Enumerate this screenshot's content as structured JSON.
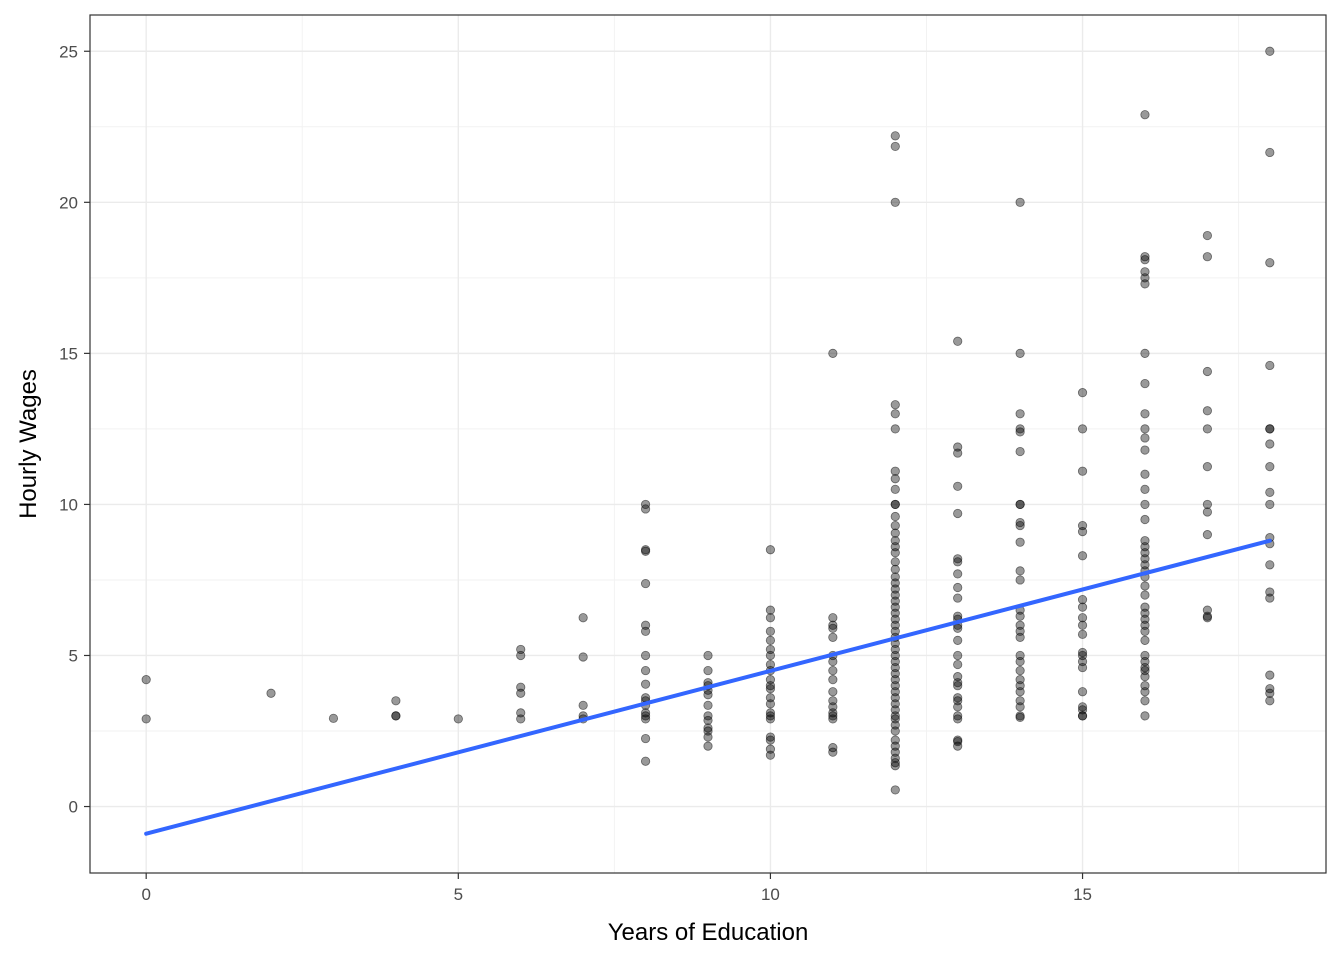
{
  "chart_data": {
    "type": "scatter",
    "title": "",
    "xlabel": "Years of Education",
    "ylabel": "Hourly Wages",
    "xlim": [
      -0.9,
      18.9
    ],
    "ylim": [
      -2.2,
      26.2
    ],
    "x_ticks": [
      0,
      5,
      10,
      15
    ],
    "y_ticks": [
      0,
      5,
      10,
      15,
      20,
      25
    ],
    "x_tick_labels": [
      "0",
      "5",
      "10",
      "15"
    ],
    "y_tick_labels": [
      "0",
      "5",
      "10",
      "15",
      "20",
      "25"
    ],
    "grid": true,
    "theme": "bw",
    "point_color": "#000000",
    "point_opacity": 0.4,
    "line_color": "#3366ff",
    "regression_line": {
      "x": [
        0,
        18
      ],
      "y": [
        -0.9,
        8.8
      ]
    },
    "points": [
      [
        0,
        4.2
      ],
      [
        0,
        2.9
      ],
      [
        2,
        3.75
      ],
      [
        3,
        2.92
      ],
      [
        4,
        3.5
      ],
      [
        4,
        3.0
      ],
      [
        4,
        3.0
      ],
      [
        5,
        2.9
      ],
      [
        6,
        5.2
      ],
      [
        6,
        5.0
      ],
      [
        6,
        3.95
      ],
      [
        6,
        3.75
      ],
      [
        6,
        3.1
      ],
      [
        6,
        2.9
      ],
      [
        7,
        6.25
      ],
      [
        7,
        4.95
      ],
      [
        7,
        3.35
      ],
      [
        7,
        3.0
      ],
      [
        7,
        2.9
      ],
      [
        8,
        10.0
      ],
      [
        8,
        9.85
      ],
      [
        8,
        8.5
      ],
      [
        8,
        8.45
      ],
      [
        8,
        7.38
      ],
      [
        8,
        6.0
      ],
      [
        8,
        5.8
      ],
      [
        8,
        5.0
      ],
      [
        8,
        4.5
      ],
      [
        8,
        4.05
      ],
      [
        8,
        3.6
      ],
      [
        8,
        3.5
      ],
      [
        8,
        3.35
      ],
      [
        8,
        3.1
      ],
      [
        8,
        3.0
      ],
      [
        8,
        2.9
      ],
      [
        8,
        2.25
      ],
      [
        8,
        1.5
      ],
      [
        9,
        5.0
      ],
      [
        9,
        4.5
      ],
      [
        9,
        4.1
      ],
      [
        9,
        4.0
      ],
      [
        9,
        3.85
      ],
      [
        9,
        3.7
      ],
      [
        9,
        3.35
      ],
      [
        9,
        3.0
      ],
      [
        9,
        2.85
      ],
      [
        9,
        2.6
      ],
      [
        9,
        2.5
      ],
      [
        9,
        2.3
      ],
      [
        9,
        2.0
      ],
      [
        10,
        8.5
      ],
      [
        10,
        6.5
      ],
      [
        10,
        6.25
      ],
      [
        10,
        5.8
      ],
      [
        10,
        5.5
      ],
      [
        10,
        5.2
      ],
      [
        10,
        5.0
      ],
      [
        10,
        4.7
      ],
      [
        10,
        4.5
      ],
      [
        10,
        4.2
      ],
      [
        10,
        4.0
      ],
      [
        10,
        3.9
      ],
      [
        10,
        3.6
      ],
      [
        10,
        3.4
      ],
      [
        10,
        3.1
      ],
      [
        10,
        3.0
      ],
      [
        10,
        2.9
      ],
      [
        10,
        2.3
      ],
      [
        10,
        2.2
      ],
      [
        10,
        1.9
      ],
      [
        10,
        1.7
      ],
      [
        11,
        15.0
      ],
      [
        11,
        6.25
      ],
      [
        11,
        6.0
      ],
      [
        11,
        5.9
      ],
      [
        11,
        5.6
      ],
      [
        11,
        5.0
      ],
      [
        11,
        4.8
      ],
      [
        11,
        4.5
      ],
      [
        11,
        4.2
      ],
      [
        11,
        3.8
      ],
      [
        11,
        3.5
      ],
      [
        11,
        3.3
      ],
      [
        11,
        3.1
      ],
      [
        11,
        3.0
      ],
      [
        11,
        2.9
      ],
      [
        11,
        1.95
      ],
      [
        11,
        1.8
      ],
      [
        12,
        22.2
      ],
      [
        12,
        21.85
      ],
      [
        12,
        20.0
      ],
      [
        12,
        13.3
      ],
      [
        12,
        13.0
      ],
      [
        12,
        12.5
      ],
      [
        12,
        11.1
      ],
      [
        12,
        10.85
      ],
      [
        12,
        10.5
      ],
      [
        12,
        10.0
      ],
      [
        12,
        10.0
      ],
      [
        12,
        9.6
      ],
      [
        12,
        9.3
      ],
      [
        12,
        9.05
      ],
      [
        12,
        8.8
      ],
      [
        12,
        8.6
      ],
      [
        12,
        8.4
      ],
      [
        12,
        8.1
      ],
      [
        12,
        7.85
      ],
      [
        12,
        7.6
      ],
      [
        12,
        7.4
      ],
      [
        12,
        7.2
      ],
      [
        12,
        7.0
      ],
      [
        12,
        6.8
      ],
      [
        12,
        6.6
      ],
      [
        12,
        6.4
      ],
      [
        12,
        6.2
      ],
      [
        12,
        6.0
      ],
      [
        12,
        5.8
      ],
      [
        12,
        5.6
      ],
      [
        12,
        5.4
      ],
      [
        12,
        5.2
      ],
      [
        12,
        5.0
      ],
      [
        12,
        4.8
      ],
      [
        12,
        4.6
      ],
      [
        12,
        4.4
      ],
      [
        12,
        4.2
      ],
      [
        12,
        4.0
      ],
      [
        12,
        3.8
      ],
      [
        12,
        3.6
      ],
      [
        12,
        3.4
      ],
      [
        12,
        3.2
      ],
      [
        12,
        3.0
      ],
      [
        12,
        2.9
      ],
      [
        12,
        2.7
      ],
      [
        12,
        2.5
      ],
      [
        12,
        2.2
      ],
      [
        12,
        2.0
      ],
      [
        12,
        1.8
      ],
      [
        12,
        1.6
      ],
      [
        12,
        1.45
      ],
      [
        12,
        1.35
      ],
      [
        12,
        0.55
      ],
      [
        13,
        15.4
      ],
      [
        13,
        11.9
      ],
      [
        13,
        11.7
      ],
      [
        13,
        10.6
      ],
      [
        13,
        9.7
      ],
      [
        13,
        8.2
      ],
      [
        13,
        8.1
      ],
      [
        13,
        7.7
      ],
      [
        13,
        7.25
      ],
      [
        13,
        6.9
      ],
      [
        13,
        6.3
      ],
      [
        13,
        6.2
      ],
      [
        13,
        6.0
      ],
      [
        13,
        5.9
      ],
      [
        13,
        5.5
      ],
      [
        13,
        5.0
      ],
      [
        13,
        4.7
      ],
      [
        13,
        4.3
      ],
      [
        13,
        4.1
      ],
      [
        13,
        4.0
      ],
      [
        13,
        3.6
      ],
      [
        13,
        3.5
      ],
      [
        13,
        3.3
      ],
      [
        13,
        3.0
      ],
      [
        13,
        2.9
      ],
      [
        13,
        2.2
      ],
      [
        13,
        2.15
      ],
      [
        13,
        2.0
      ],
      [
        14,
        20.0
      ],
      [
        14,
        15.0
      ],
      [
        14,
        13.0
      ],
      [
        14,
        12.5
      ],
      [
        14,
        12.4
      ],
      [
        14,
        11.75
      ],
      [
        14,
        10.0
      ],
      [
        14,
        10.0
      ],
      [
        14,
        9.4
      ],
      [
        14,
        9.3
      ],
      [
        14,
        8.75
      ],
      [
        14,
        7.8
      ],
      [
        14,
        7.5
      ],
      [
        14,
        6.5
      ],
      [
        14,
        6.3
      ],
      [
        14,
        6.0
      ],
      [
        14,
        5.8
      ],
      [
        14,
        5.6
      ],
      [
        14,
        5.0
      ],
      [
        14,
        4.8
      ],
      [
        14,
        4.5
      ],
      [
        14,
        4.2
      ],
      [
        14,
        4.0
      ],
      [
        14,
        3.8
      ],
      [
        14,
        3.5
      ],
      [
        14,
        3.3
      ],
      [
        14,
        3.0
      ],
      [
        14,
        2.95
      ],
      [
        15,
        13.7
      ],
      [
        15,
        12.5
      ],
      [
        15,
        11.1
      ],
      [
        15,
        9.3
      ],
      [
        15,
        9.1
      ],
      [
        15,
        8.3
      ],
      [
        15,
        6.85
      ],
      [
        15,
        6.6
      ],
      [
        15,
        6.25
      ],
      [
        15,
        6.0
      ],
      [
        15,
        5.7
      ],
      [
        15,
        5.1
      ],
      [
        15,
        5.0
      ],
      [
        15,
        4.8
      ],
      [
        15,
        4.6
      ],
      [
        15,
        3.8
      ],
      [
        15,
        3.3
      ],
      [
        15,
        3.2
      ],
      [
        15,
        3.0
      ],
      [
        15,
        3.0
      ],
      [
        16,
        22.9
      ],
      [
        16,
        18.2
      ],
      [
        16,
        18.1
      ],
      [
        16,
        17.7
      ],
      [
        16,
        17.5
      ],
      [
        16,
        17.3
      ],
      [
        16,
        15.0
      ],
      [
        16,
        14.0
      ],
      [
        16,
        13.0
      ],
      [
        16,
        12.5
      ],
      [
        16,
        12.2
      ],
      [
        16,
        11.8
      ],
      [
        16,
        11.0
      ],
      [
        16,
        10.5
      ],
      [
        16,
        10.0
      ],
      [
        16,
        9.5
      ],
      [
        16,
        8.8
      ],
      [
        16,
        8.6
      ],
      [
        16,
        8.4
      ],
      [
        16,
        8.2
      ],
      [
        16,
        8.0
      ],
      [
        16,
        7.8
      ],
      [
        16,
        7.6
      ],
      [
        16,
        7.3
      ],
      [
        16,
        7.0
      ],
      [
        16,
        6.6
      ],
      [
        16,
        6.4
      ],
      [
        16,
        6.2
      ],
      [
        16,
        6.0
      ],
      [
        16,
        5.8
      ],
      [
        16,
        5.5
      ],
      [
        16,
        5.0
      ],
      [
        16,
        4.8
      ],
      [
        16,
        4.6
      ],
      [
        16,
        4.5
      ],
      [
        16,
        4.3
      ],
      [
        16,
        4.0
      ],
      [
        16,
        3.8
      ],
      [
        16,
        3.5
      ],
      [
        16,
        3.0
      ],
      [
        17,
        18.9
      ],
      [
        17,
        18.2
      ],
      [
        17,
        14.4
      ],
      [
        17,
        13.1
      ],
      [
        17,
        12.5
      ],
      [
        17,
        11.25
      ],
      [
        17,
        10.0
      ],
      [
        17,
        9.75
      ],
      [
        17,
        9.0
      ],
      [
        17,
        6.5
      ],
      [
        17,
        6.3
      ],
      [
        17,
        6.25
      ],
      [
        18,
        25.0
      ],
      [
        18,
        21.65
      ],
      [
        18,
        18.0
      ],
      [
        18,
        14.6
      ],
      [
        18,
        12.5
      ],
      [
        18,
        12.5
      ],
      [
        18,
        12.0
      ],
      [
        18,
        11.25
      ],
      [
        18,
        10.4
      ],
      [
        18,
        10.0
      ],
      [
        18,
        8.9
      ],
      [
        18,
        8.7
      ],
      [
        18,
        8.0
      ],
      [
        18,
        7.1
      ],
      [
        18,
        6.9
      ],
      [
        18,
        4.35
      ],
      [
        18,
        3.9
      ],
      [
        18,
        3.75
      ],
      [
        18,
        3.5
      ]
    ]
  }
}
